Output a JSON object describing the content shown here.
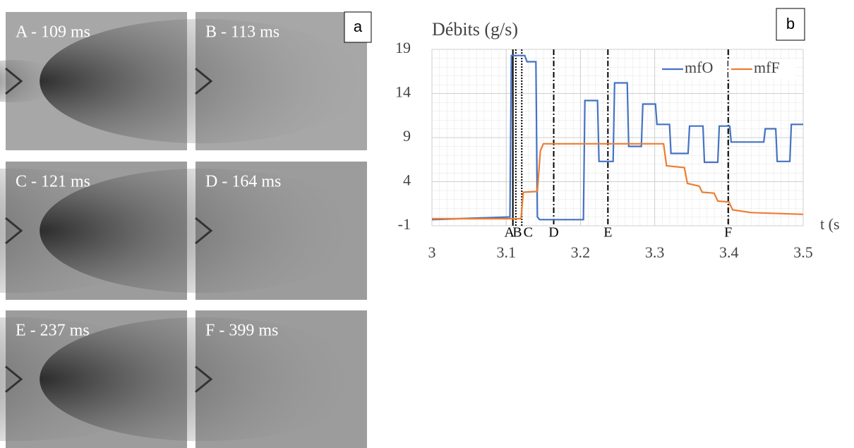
{
  "photos": [
    "A - 109 ms",
    "B - 113 ms",
    "C - 121 ms",
    "D - 164 ms",
    "E - 237 ms",
    "F - 399 ms"
  ],
  "panel_labels": [
    "a",
    "b"
  ],
  "chart_data": {
    "type": "line",
    "title": "Débits (g/s)",
    "x_label": "t (s",
    "xlim": [
      3,
      3.5
    ],
    "xticks": [
      3,
      3.1,
      3.2,
      3.3,
      3.4,
      3.5
    ],
    "ylim": [
      -1,
      19
    ],
    "yticks": [
      -1,
      4,
      9,
      14,
      19
    ],
    "grid": true,
    "legend": "upper right",
    "series": [
      {
        "name": "mfO",
        "color": "#4472c4",
        "x": [
          3,
          3.105,
          3.107,
          3.125,
          3.128,
          3.14,
          3.142,
          3.145,
          3.204,
          3.206,
          3.223,
          3.225,
          3.244,
          3.246,
          3.263,
          3.265,
          3.282,
          3.284,
          3.301,
          3.303,
          3.32,
          3.322,
          3.345,
          3.347,
          3.365,
          3.367,
          3.385,
          3.387,
          3.401,
          3.403,
          3.447,
          3.449,
          3.463,
          3.465,
          3.482,
          3.484,
          3.5
        ],
        "values": [
          -0.3,
          0,
          18.3,
          18.3,
          17.6,
          17.6,
          0,
          -0.3,
          -0.3,
          13.2,
          13.2,
          6.3,
          6.3,
          15.2,
          15.2,
          8,
          8,
          12.8,
          12.8,
          10.5,
          10.5,
          7.2,
          7.2,
          10.3,
          10.3,
          6.2,
          6.2,
          10.3,
          10.3,
          8.5,
          8.5,
          10,
          10,
          6.3,
          6.3,
          10.5,
          10.5
        ]
      },
      {
        "name": "mfF",
        "color": "#ed7d31",
        "x": [
          3,
          3.12,
          3.123,
          3.142,
          3.146,
          3.15,
          3.312,
          3.316,
          3.34,
          3.344,
          3.36,
          3.364,
          3.38,
          3.385,
          3.4,
          3.405,
          3.43,
          3.5
        ],
        "values": [
          -0.2,
          -0.2,
          2.8,
          2.9,
          7.5,
          8.3,
          8.3,
          5.8,
          5.6,
          3.8,
          3.5,
          2.8,
          2.7,
          1.8,
          1.7,
          0.8,
          0.5,
          0.3
        ]
      }
    ],
    "events": [
      {
        "label": "A",
        "x": 3.109,
        "dash": "solid"
      },
      {
        "label": "B",
        "x": 3.113,
        "dash": "dotted"
      },
      {
        "label": "C",
        "x": 3.121,
        "dash": "dotted"
      },
      {
        "label": "D",
        "x": 3.164,
        "dash": "dashdot"
      },
      {
        "label": "E",
        "x": 3.237,
        "dash": "dashdot"
      },
      {
        "label": "F",
        "x": 3.399,
        "dash": "dashdot"
      }
    ]
  }
}
